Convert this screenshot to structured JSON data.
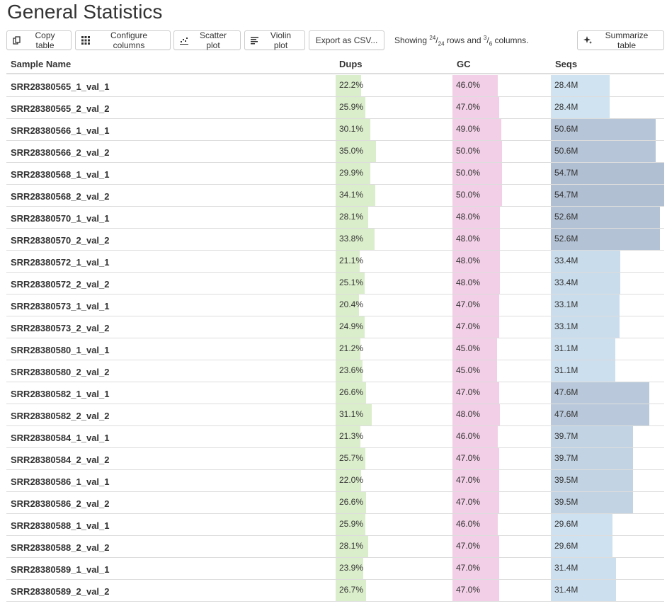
{
  "page": {
    "title": "General Statistics"
  },
  "toolbar": {
    "copy_label": "Copy table",
    "configure_label": "Configure columns",
    "scatter_label": "Scatter plot",
    "violin_label": "Violin plot",
    "export_label": "Export as CSV...",
    "summarize_label": "Summarize table",
    "showing_prefix": "Showing ",
    "rows_shown": "24",
    "rows_total": "24",
    "rows_mid": " rows and ",
    "cols_shown": "3",
    "cols_total": "6",
    "cols_suffix": " columns."
  },
  "table": {
    "headers": {
      "sample": "Sample Name",
      "dups": "Dups",
      "gc": "GC",
      "seqs": "Seqs"
    },
    "colors": {
      "dups": "#dbeecb",
      "gc": "#f2cfe6",
      "seqs_low": "#cfe3f1",
      "seqs_high": "#b1bfd3"
    },
    "rows": [
      {
        "name": "SRR28380565_1_val_1",
        "dups": "22.2%",
        "gc": "46.0%",
        "seqs": "28.4M",
        "seqs_val": 28.4,
        "dups_val": 22.2,
        "gc_val": 46.0
      },
      {
        "name": "SRR28380565_2_val_2",
        "dups": "25.9%",
        "gc": "47.0%",
        "seqs": "28.4M",
        "seqs_val": 28.4,
        "dups_val": 25.9,
        "gc_val": 47.0
      },
      {
        "name": "SRR28380566_1_val_1",
        "dups": "30.1%",
        "gc": "49.0%",
        "seqs": "50.6M",
        "seqs_val": 50.6,
        "dups_val": 30.1,
        "gc_val": 49.0
      },
      {
        "name": "SRR28380566_2_val_2",
        "dups": "35.0%",
        "gc": "50.0%",
        "seqs": "50.6M",
        "seqs_val": 50.6,
        "dups_val": 35.0,
        "gc_val": 50.0
      },
      {
        "name": "SRR28380568_1_val_1",
        "dups": "29.9%",
        "gc": "50.0%",
        "seqs": "54.7M",
        "seqs_val": 54.7,
        "dups_val": 29.9,
        "gc_val": 50.0
      },
      {
        "name": "SRR28380568_2_val_2",
        "dups": "34.1%",
        "gc": "50.0%",
        "seqs": "54.7M",
        "seqs_val": 54.7,
        "dups_val": 34.1,
        "gc_val": 50.0
      },
      {
        "name": "SRR28380570_1_val_1",
        "dups": "28.1%",
        "gc": "48.0%",
        "seqs": "52.6M",
        "seqs_val": 52.6,
        "dups_val": 28.1,
        "gc_val": 48.0
      },
      {
        "name": "SRR28380570_2_val_2",
        "dups": "33.8%",
        "gc": "48.0%",
        "seqs": "52.6M",
        "seqs_val": 52.6,
        "dups_val": 33.8,
        "gc_val": 48.0
      },
      {
        "name": "SRR28380572_1_val_1",
        "dups": "21.1%",
        "gc": "48.0%",
        "seqs": "33.4M",
        "seqs_val": 33.4,
        "dups_val": 21.1,
        "gc_val": 48.0
      },
      {
        "name": "SRR28380572_2_val_2",
        "dups": "25.1%",
        "gc": "48.0%",
        "seqs": "33.4M",
        "seqs_val": 33.4,
        "dups_val": 25.1,
        "gc_val": 48.0
      },
      {
        "name": "SRR28380573_1_val_1",
        "dups": "20.4%",
        "gc": "47.0%",
        "seqs": "33.1M",
        "seqs_val": 33.1,
        "dups_val": 20.4,
        "gc_val": 47.0
      },
      {
        "name": "SRR28380573_2_val_2",
        "dups": "24.9%",
        "gc": "47.0%",
        "seqs": "33.1M",
        "seqs_val": 33.1,
        "dups_val": 24.9,
        "gc_val": 47.0
      },
      {
        "name": "SRR28380580_1_val_1",
        "dups": "21.2%",
        "gc": "45.0%",
        "seqs": "31.1M",
        "seqs_val": 31.1,
        "dups_val": 21.2,
        "gc_val": 45.0
      },
      {
        "name": "SRR28380580_2_val_2",
        "dups": "23.6%",
        "gc": "45.0%",
        "seqs": "31.1M",
        "seqs_val": 31.1,
        "dups_val": 23.6,
        "gc_val": 45.0
      },
      {
        "name": "SRR28380582_1_val_1",
        "dups": "26.6%",
        "gc": "47.0%",
        "seqs": "47.6M",
        "seqs_val": 47.6,
        "dups_val": 26.6,
        "gc_val": 47.0
      },
      {
        "name": "SRR28380582_2_val_2",
        "dups": "31.1%",
        "gc": "48.0%",
        "seqs": "47.6M",
        "seqs_val": 47.6,
        "dups_val": 31.1,
        "gc_val": 48.0
      },
      {
        "name": "SRR28380584_1_val_1",
        "dups": "21.3%",
        "gc": "46.0%",
        "seqs": "39.7M",
        "seqs_val": 39.7,
        "dups_val": 21.3,
        "gc_val": 46.0
      },
      {
        "name": "SRR28380584_2_val_2",
        "dups": "25.7%",
        "gc": "47.0%",
        "seqs": "39.7M",
        "seqs_val": 39.7,
        "dups_val": 25.7,
        "gc_val": 47.0
      },
      {
        "name": "SRR28380586_1_val_1",
        "dups": "22.0%",
        "gc": "47.0%",
        "seqs": "39.5M",
        "seqs_val": 39.5,
        "dups_val": 22.0,
        "gc_val": 47.0
      },
      {
        "name": "SRR28380586_2_val_2",
        "dups": "26.6%",
        "gc": "47.0%",
        "seqs": "39.5M",
        "seqs_val": 39.5,
        "dups_val": 26.6,
        "gc_val": 47.0
      },
      {
        "name": "SRR28380588_1_val_1",
        "dups": "25.9%",
        "gc": "46.0%",
        "seqs": "29.6M",
        "seqs_val": 29.6,
        "dups_val": 25.9,
        "gc_val": 46.0
      },
      {
        "name": "SRR28380588_2_val_2",
        "dups": "28.1%",
        "gc": "47.0%",
        "seqs": "29.6M",
        "seqs_val": 29.6,
        "dups_val": 28.1,
        "gc_val": 47.0
      },
      {
        "name": "SRR28380589_1_val_1",
        "dups": "23.9%",
        "gc": "47.0%",
        "seqs": "31.4M",
        "seqs_val": 31.4,
        "dups_val": 23.9,
        "gc_val": 47.0
      },
      {
        "name": "SRR28380589_2_val_2",
        "dups": "26.7%",
        "gc": "47.0%",
        "seqs": "31.4M",
        "seqs_val": 31.4,
        "dups_val": 26.7,
        "gc_val": 47.0
      }
    ]
  }
}
